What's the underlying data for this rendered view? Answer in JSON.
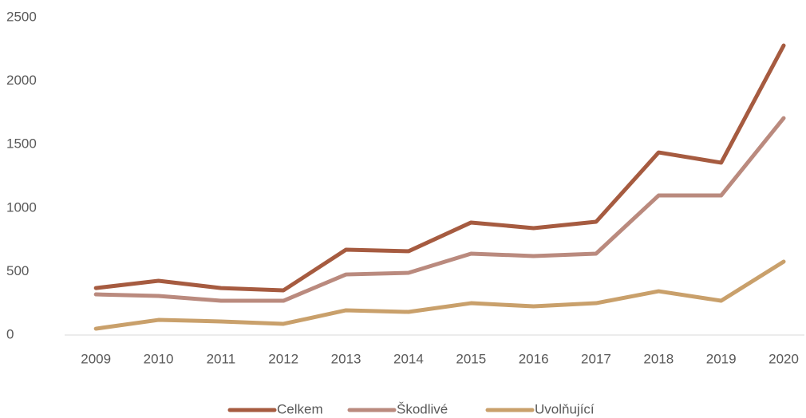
{
  "chart_data": {
    "type": "line",
    "categories": [
      "2009",
      "2010",
      "2011",
      "2012",
      "2013",
      "2014",
      "2015",
      "2016",
      "2017",
      "2018",
      "2019",
      "2020"
    ],
    "series": [
      {
        "name": "Celkem",
        "color": "#a65b40",
        "values": [
          370,
          427,
          370,
          352,
          672,
          660,
          886,
          842,
          892,
          1438,
          1357,
          2280
        ]
      },
      {
        "name": "Škodlivé",
        "color": "#ba8a7e",
        "values": [
          320,
          308,
          270,
          270,
          477,
          490,
          641,
          622,
          641,
          1099,
          1099,
          1708
        ]
      },
      {
        "name": "Uvolňující",
        "color": "#c9a06b",
        "values": [
          50,
          119,
          107,
          88,
          195,
          182,
          251,
          226,
          251,
          345,
          270,
          578
        ]
      }
    ],
    "ylim": [
      0,
      2500
    ],
    "yticks": [
      0,
      500,
      1000,
      1500,
      2000,
      2500
    ],
    "grid": false,
    "legend": "bottom"
  }
}
